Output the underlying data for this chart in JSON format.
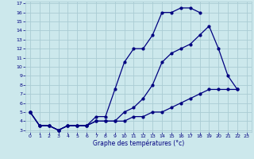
{
  "xlabel": "Graphe des températures (°c)",
  "background_color": "#cce8ec",
  "grid_color": "#aaccd4",
  "line_color": "#000080",
  "xlim": [
    -0.5,
    23.5
  ],
  "ylim": [
    2.8,
    17.2
  ],
  "yticks": [
    3,
    4,
    5,
    6,
    7,
    8,
    9,
    10,
    11,
    12,
    13,
    14,
    15,
    16,
    17
  ],
  "xticks": [
    0,
    1,
    2,
    3,
    4,
    5,
    6,
    7,
    8,
    9,
    10,
    11,
    12,
    13,
    14,
    15,
    16,
    17,
    18,
    19,
    20,
    21,
    22,
    23
  ],
  "line1_x": [
    0,
    1,
    2,
    3,
    4,
    5,
    6,
    7,
    8,
    9,
    10,
    11,
    12,
    13,
    14,
    15,
    16,
    17,
    18
  ],
  "line1_y": [
    5.0,
    3.5,
    3.5,
    3.0,
    3.5,
    3.5,
    3.5,
    4.5,
    4.5,
    7.5,
    10.5,
    12.0,
    12.0,
    13.5,
    16.0,
    16.0,
    16.5,
    16.5,
    16.0
  ],
  "line2_x": [
    0,
    1,
    2,
    3,
    4,
    5,
    6,
    7,
    8,
    9,
    10,
    11,
    12,
    13,
    14,
    15,
    16,
    17,
    18,
    19,
    20,
    21,
    22
  ],
  "line2_y": [
    5.0,
    3.5,
    3.5,
    3.0,
    3.5,
    3.5,
    3.5,
    4.0,
    4.0,
    4.0,
    4.0,
    4.5,
    4.5,
    5.0,
    5.0,
    5.5,
    6.0,
    6.5,
    7.0,
    7.5,
    7.5,
    7.5,
    7.5
  ],
  "line3_x": [
    0,
    1,
    2,
    3,
    4,
    5,
    6,
    7,
    8,
    9,
    10,
    11,
    12,
    13,
    14,
    15,
    16,
    17,
    18,
    19,
    20,
    21,
    22
  ],
  "line3_y": [
    5.0,
    3.5,
    3.5,
    3.0,
    3.5,
    3.5,
    3.5,
    4.0,
    4.0,
    4.0,
    5.0,
    5.5,
    6.5,
    8.0,
    10.5,
    11.5,
    12.0,
    12.5,
    13.5,
    14.5,
    12.0,
    9.0,
    7.5
  ]
}
